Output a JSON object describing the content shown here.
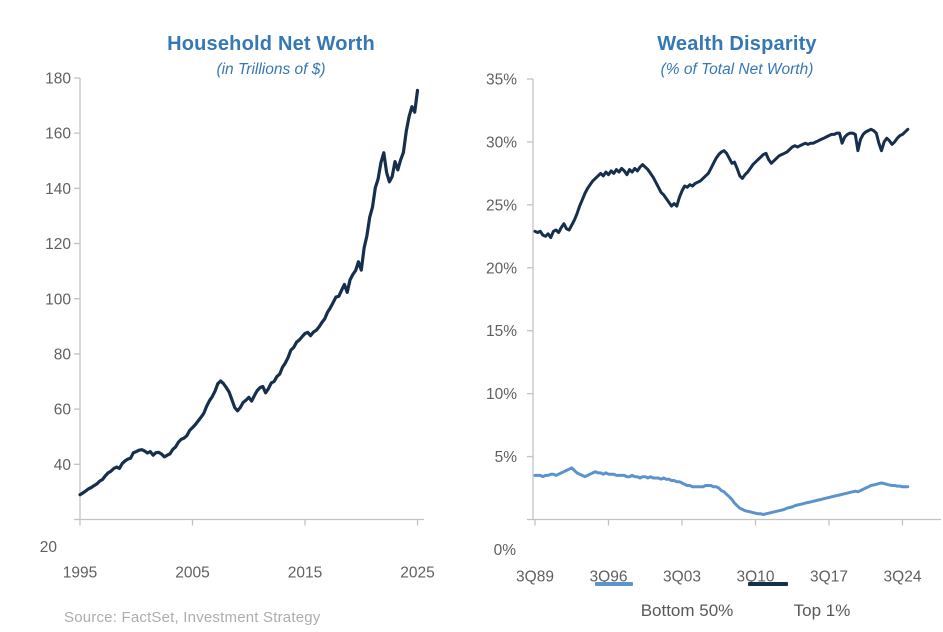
{
  "source_note": "Source: FactSet, Investment Strategy",
  "colors": {
    "title_blue": "#3578B5",
    "navy": "#152F4D",
    "light_blue": "#5B93CE",
    "axis_line": "#C2C2C2",
    "axis_text": "#606060",
    "legend_text": "#595959",
    "source_text": "#ADADAD"
  },
  "legend": {
    "entries": [
      {
        "label": "Bottom 50%",
        "color": "#5B93CE"
      },
      {
        "label": "Top 1%",
        "color": "#152F4D"
      }
    ]
  },
  "chart_data": [
    {
      "type": "line",
      "title": "Household Net Worth",
      "subtitle": "(in Trillions of $)",
      "xlabel": "",
      "ylabel": "",
      "grid": false,
      "xlim": [
        1995,
        2025.5
      ],
      "ylim": [
        20,
        180
      ],
      "x_start": 1995.0,
      "x_step": 0.25,
      "x_tick_values": [
        1995,
        2005,
        2015,
        2025
      ],
      "x_tick_labels": [
        "1995",
        "2005",
        "2015",
        "2025"
      ],
      "y_tick_values": [
        180,
        160,
        140,
        120,
        100,
        80,
        60,
        40,
        20
      ],
      "y_tick_labels": [
        "180",
        "160",
        "140",
        "120",
        "100",
        "80",
        "60",
        "40",
        "20"
      ],
      "series": [
        {
          "name": "Household Net Worth",
          "color_key": "navy",
          "values": [
            29.0,
            29.6,
            30.3,
            31.1,
            31.6,
            32.3,
            32.9,
            33.9,
            34.5,
            35.8,
            36.9,
            37.5,
            38.5,
            39.0,
            38.5,
            40.3,
            41.2,
            41.9,
            42.2,
            44.2,
            44.6,
            45.1,
            45.3,
            44.8,
            44.1,
            44.6,
            43.3,
            44.2,
            44.3,
            43.7,
            42.7,
            43.3,
            43.8,
            45.4,
            46.3,
            48.0,
            49.1,
            49.5,
            50.4,
            52.3,
            53.3,
            54.4,
            55.7,
            57.0,
            58.5,
            61.0,
            63.0,
            64.5,
            66.5,
            69.2,
            70.2,
            69.3,
            67.8,
            66.2,
            63.4,
            60.6,
            59.4,
            60.6,
            62.4,
            63.2,
            64.3,
            62.9,
            64.9,
            66.7,
            67.8,
            68.2,
            65.9,
            67.4,
            69.5,
            70.0,
            71.8,
            72.7,
            75.2,
            76.7,
            78.7,
            81.4,
            82.4,
            84.3,
            85.1,
            86.3,
            87.4,
            87.8,
            86.6,
            87.9,
            88.6,
            89.8,
            91.4,
            92.7,
            95.1,
            96.7,
            98.6,
            100.6,
            100.9,
            103.1,
            105.2,
            102.3,
            106.8,
            108.8,
            110.2,
            113.4,
            110.4,
            118.4,
            122.8,
            129.5,
            133.2,
            140.2,
            143.4,
            149.3,
            152.9,
            145.8,
            142.4,
            144.3,
            149.7,
            146.7,
            150.3,
            153.0,
            160.8,
            166.0,
            169.6,
            167.6,
            175.5
          ]
        }
      ]
    },
    {
      "type": "line",
      "title": "Wealth Disparity",
      "subtitle": "(% of Total Net Worth)",
      "xlabel": "",
      "ylabel": "",
      "grid": false,
      "xlim": [
        1989.5,
        2025.5
      ],
      "ylim": [
        0,
        35
      ],
      "x_start": 1989.5,
      "x_step": 0.25,
      "x_tick_values": [
        1989.5,
        1996.5,
        2003.5,
        2010.5,
        2017.5,
        2024.5
      ],
      "x_tick_labels": [
        "3Q89",
        "3Q96",
        "3Q03",
        "3Q10",
        "3Q17",
        "3Q24"
      ],
      "y_tick_values": [
        35,
        30,
        25,
        20,
        15,
        10,
        5,
        0
      ],
      "y_tick_labels": [
        "35%",
        "30%",
        "25%",
        "20%",
        "15%",
        "10%",
        "5%",
        "0%"
      ],
      "series": [
        {
          "name": "Top 1%",
          "color_key": "navy",
          "values": [
            22.9,
            22.8,
            22.9,
            22.6,
            22.5,
            22.7,
            22.4,
            22.9,
            23.0,
            22.8,
            23.2,
            23.5,
            23.1,
            23.0,
            23.4,
            23.8,
            24.3,
            24.9,
            25.4,
            25.9,
            26.3,
            26.6,
            26.9,
            27.1,
            27.3,
            27.5,
            27.3,
            27.6,
            27.4,
            27.7,
            27.5,
            27.8,
            27.6,
            27.9,
            27.7,
            27.4,
            27.8,
            27.6,
            27.9,
            27.7,
            28.0,
            28.2,
            28.0,
            27.8,
            27.5,
            27.2,
            26.8,
            26.4,
            26.0,
            25.8,
            25.5,
            25.2,
            24.9,
            25.1,
            24.9,
            25.6,
            26.1,
            26.5,
            26.4,
            26.6,
            26.5,
            26.7,
            26.8,
            26.9,
            27.1,
            27.3,
            27.5,
            27.9,
            28.3,
            28.7,
            29.0,
            29.2,
            29.3,
            29.1,
            28.7,
            28.3,
            28.4,
            27.9,
            27.3,
            27.1,
            27.4,
            27.6,
            27.9,
            28.2,
            28.4,
            28.6,
            28.8,
            29.0,
            29.1,
            28.6,
            28.3,
            28.5,
            28.7,
            28.9,
            29.0,
            29.1,
            29.2,
            29.4,
            29.6,
            29.7,
            29.6,
            29.7,
            29.8,
            29.9,
            29.8,
            29.9,
            29.9,
            30.0,
            30.1,
            30.2,
            30.3,
            30.4,
            30.5,
            30.6,
            30.6,
            30.7,
            30.7,
            29.9,
            30.4,
            30.6,
            30.7,
            30.7,
            30.6,
            29.3,
            30.2,
            30.6,
            30.8,
            30.9,
            31.0,
            30.9,
            30.7,
            29.9,
            29.3,
            30.0,
            30.3,
            30.1,
            29.8,
            30.0,
            30.3,
            30.5,
            30.6,
            30.8,
            31.0
          ]
        },
        {
          "name": "Bottom 50%",
          "color_key": "light_blue",
          "values": [
            3.5,
            3.5,
            3.5,
            3.4,
            3.5,
            3.5,
            3.6,
            3.6,
            3.5,
            3.6,
            3.7,
            3.8,
            3.9,
            4.0,
            4.1,
            3.9,
            3.7,
            3.6,
            3.5,
            3.4,
            3.5,
            3.6,
            3.7,
            3.8,
            3.7,
            3.7,
            3.6,
            3.7,
            3.6,
            3.6,
            3.6,
            3.5,
            3.5,
            3.5,
            3.5,
            3.4,
            3.4,
            3.5,
            3.4,
            3.4,
            3.3,
            3.4,
            3.4,
            3.3,
            3.4,
            3.3,
            3.3,
            3.3,
            3.2,
            3.3,
            3.2,
            3.2,
            3.1,
            3.1,
            3.0,
            3.0,
            2.9,
            2.8,
            2.7,
            2.7,
            2.6,
            2.6,
            2.6,
            2.6,
            2.6,
            2.7,
            2.7,
            2.7,
            2.6,
            2.6,
            2.5,
            2.3,
            2.2,
            2.0,
            1.8,
            1.6,
            1.3,
            1.1,
            0.9,
            0.8,
            0.7,
            0.65,
            0.6,
            0.55,
            0.5,
            0.45,
            0.45,
            0.4,
            0.45,
            0.5,
            0.55,
            0.6,
            0.65,
            0.7,
            0.75,
            0.8,
            0.9,
            0.95,
            1.0,
            1.1,
            1.15,
            1.2,
            1.25,
            1.3,
            1.35,
            1.4,
            1.45,
            1.5,
            1.55,
            1.6,
            1.65,
            1.7,
            1.75,
            1.8,
            1.85,
            1.9,
            1.95,
            2.0,
            2.05,
            2.1,
            2.15,
            2.2,
            2.25,
            2.2,
            2.3,
            2.4,
            2.5,
            2.6,
            2.7,
            2.75,
            2.8,
            2.85,
            2.9,
            2.85,
            2.8,
            2.75,
            2.7,
            2.7,
            2.65,
            2.65,
            2.6,
            2.6,
            2.6
          ]
        }
      ]
    }
  ]
}
